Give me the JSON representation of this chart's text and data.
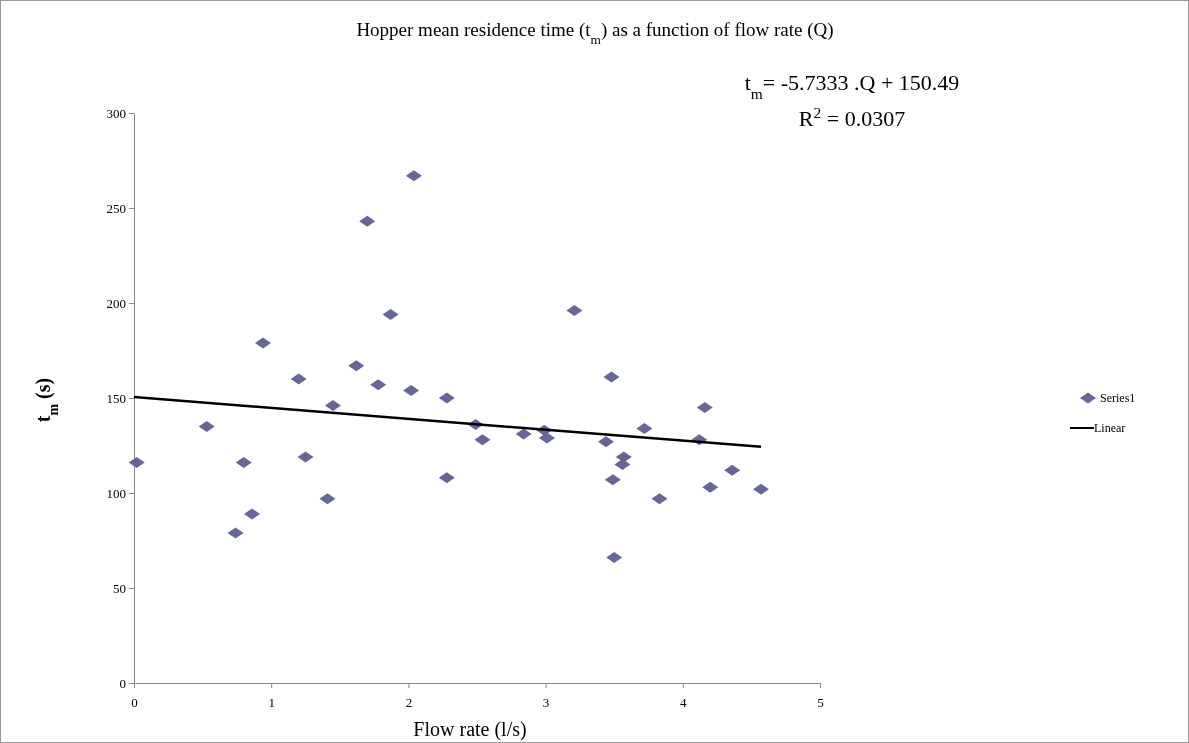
{
  "chart_data": {
    "type": "scatter",
    "title": "Hopper mean residence time (t$_{m}$) as a function of flow rate (Q)",
    "xlabel": "Flow rate    (l/s)",
    "ylabel": "t$_{m}$    (s)",
    "annotations": [
      "t$_{m}$= -5.7333 .Q  + 150.49",
      "R$^{2}$ = 0.0307"
    ],
    "xlim": [
      0,
      5
    ],
    "xticks": [
      0,
      1,
      2,
      3,
      4,
      5
    ],
    "ylim": [
      0,
      300
    ],
    "yticks": [
      0,
      50,
      100,
      150,
      200,
      250,
      300
    ],
    "grid": false,
    "legend": "right",
    "marker": "diamond",
    "series": [
      {
        "name": "Series1",
        "color": "#666699",
        "x": [
          0.02,
          0.53,
          0.74,
          0.8,
          0.86,
          0.94,
          1.2,
          1.25,
          1.41,
          1.45,
          1.62,
          1.7,
          1.78,
          1.87,
          2.02,
          2.04,
          2.28,
          2.28,
          2.49,
          2.54,
          2.84,
          2.99,
          3.01,
          3.21,
          3.44,
          3.48,
          3.49,
          3.5,
          3.57,
          3.56,
          3.72,
          3.83,
          4.12,
          4.16,
          4.2,
          4.36,
          4.57
        ],
        "values": [
          116,
          135,
          79,
          116,
          89,
          179,
          160,
          119,
          97,
          146,
          167,
          243,
          157,
          194,
          154,
          267,
          150,
          108,
          136,
          128,
          131,
          133,
          129,
          196,
          127,
          161,
          107,
          66,
          119,
          115,
          134,
          97,
          128,
          145,
          103,
          112,
          102
        ]
      },
      {
        "name": "Linear",
        "type": "line",
        "color": "#000000",
        "marker": "none",
        "line_style": "solid",
        "x": [
          0,
          4.57
        ],
        "values": [
          150.49,
          124.29
        ]
      }
    ]
  }
}
